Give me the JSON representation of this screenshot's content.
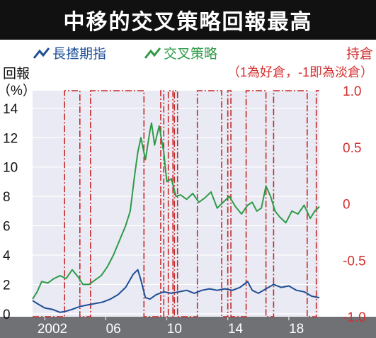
{
  "title": "中移的交叉策略回報最高",
  "colors": {
    "background": "#ffffff",
    "plot_bg": "#e9eaf3",
    "axis_band": "#6f7175",
    "hsi_line": "#1f4e96",
    "strategy_line": "#2e9b47",
    "position_line": "#c62828",
    "left_text": "#111111",
    "right_text": "#d32f2f"
  },
  "chart_data": {
    "type": "line",
    "x_ticks": [
      "2002",
      "06",
      "10",
      "14",
      "18"
    ],
    "legend": [
      {
        "name": "長揸期指",
        "color": "#1f4e96"
      },
      {
        "name": "交叉策略",
        "color": "#2e9b47"
      }
    ],
    "left_axis": {
      "label_line1": "回報",
      "label_line2": "（%）",
      "ticks": [
        "0",
        "2",
        "4",
        "6",
        "8",
        "10",
        "12",
        "14"
      ],
      "range": [
        -0.2,
        15.2
      ]
    },
    "right_axis": {
      "label_line1": "持倉",
      "label_line2": "（1為好倉，-1即為淡倉）",
      "ticks": [
        "1.0",
        "0.5",
        "0",
        "-0.5",
        "-1.0"
      ],
      "range": [
        -1.0,
        1.0
      ]
    },
    "x_range": [
      2001.2,
      2020.0
    ],
    "series": [
      {
        "name": "長揸期指",
        "x": [
          2001.2,
          2001.5,
          2002.0,
          2002.5,
          2003.0,
          2003.3,
          2003.8,
          2004.3,
          2004.8,
          2005.3,
          2005.8,
          2006.3,
          2006.8,
          2007.3,
          2007.8,
          2008.1,
          2008.3,
          2008.6,
          2008.9,
          2009.3,
          2009.8,
          2010.3,
          2010.8,
          2011.3,
          2011.8,
          2012.3,
          2012.8,
          2013.3,
          2013.8,
          2014.3,
          2014.8,
          2015.3,
          2015.6,
          2016.0,
          2016.5,
          2017.0,
          2017.5,
          2018.0,
          2018.5,
          2019.0,
          2019.5,
          2020.0
        ],
        "values": [
          0.9,
          0.7,
          0.4,
          0.3,
          0.1,
          0.15,
          0.3,
          0.5,
          0.6,
          0.7,
          0.8,
          1.0,
          1.3,
          1.8,
          2.7,
          3.0,
          2.3,
          1.1,
          1.0,
          1.3,
          1.5,
          1.4,
          1.5,
          1.6,
          1.4,
          1.6,
          1.7,
          1.6,
          1.7,
          1.6,
          1.8,
          2.2,
          1.6,
          1.4,
          1.7,
          2.0,
          1.8,
          1.9,
          1.6,
          1.5,
          1.2,
          1.1
        ]
      },
      {
        "name": "交叉策略",
        "x": [
          2001.2,
          2001.5,
          2001.8,
          2002.2,
          2002.6,
          2003.0,
          2003.4,
          2003.8,
          2004.2,
          2004.5,
          2004.9,
          2005.3,
          2005.7,
          2006.1,
          2006.5,
          2006.9,
          2007.3,
          2007.6,
          2007.9,
          2008.1,
          2008.3,
          2008.6,
          2008.9,
          2009.0,
          2009.2,
          2009.5,
          2009.8,
          2010.0,
          2010.3,
          2010.6,
          2010.9,
          2011.3,
          2011.7,
          2012.1,
          2012.5,
          2012.9,
          2013.3,
          2013.7,
          2014.1,
          2014.5,
          2014.9,
          2015.3,
          2015.6,
          2015.9,
          2016.2,
          2016.5,
          2016.8,
          2017.1,
          2017.4,
          2017.8,
          2018.2,
          2018.6,
          2019.0,
          2019.4,
          2019.7,
          2020.0
        ],
        "values": [
          1.0,
          1.5,
          2.2,
          2.1,
          2.4,
          2.6,
          2.4,
          3.0,
          2.5,
          2.0,
          2.0,
          2.3,
          2.6,
          3.2,
          4.0,
          5.0,
          6.0,
          7.0,
          9.5,
          11.0,
          12.0,
          10.5,
          12.5,
          13.0,
          11.5,
          12.8,
          11.0,
          9.0,
          9.2,
          8.0,
          8.1,
          7.8,
          8.2,
          7.6,
          7.9,
          8.3,
          7.2,
          7.6,
          8.0,
          7.3,
          6.8,
          7.4,
          7.6,
          7.0,
          7.2,
          8.7,
          8.0,
          7.0,
          6.6,
          6.2,
          7.0,
          6.8,
          7.4,
          6.5,
          7.0,
          7.3
        ]
      }
    ],
    "position": {
      "name": "持倉",
      "x": [
        2001.2,
        2003.3,
        2003.3,
        2004.3,
        2004.3,
        2005.0,
        2005.0,
        2008.5,
        2008.5,
        2009.6,
        2009.6,
        2009.8,
        2009.8,
        2010.1,
        2010.1,
        2010.4,
        2010.4,
        2010.5,
        2010.5,
        2010.7,
        2010.7,
        2012.0,
        2012.0,
        2013.6,
        2013.6,
        2014.0,
        2014.0,
        2014.2,
        2014.2,
        2015.2,
        2015.2,
        2016.5,
        2016.5,
        2017.0,
        2017.0,
        2019.2,
        2019.2,
        2019.8,
        2019.8,
        2020.0
      ],
      "values": [
        -1,
        -1,
        1,
        1,
        -1,
        -1,
        1,
        1,
        -1,
        -1,
        1,
        1,
        -1,
        -1,
        1,
        1,
        -1,
        -1,
        1,
        1,
        -1,
        -1,
        1,
        1,
        -1,
        -1,
        1,
        1,
        -1,
        -1,
        1,
        1,
        -1,
        -1,
        1,
        1,
        -1,
        -1,
        1,
        1
      ]
    }
  }
}
